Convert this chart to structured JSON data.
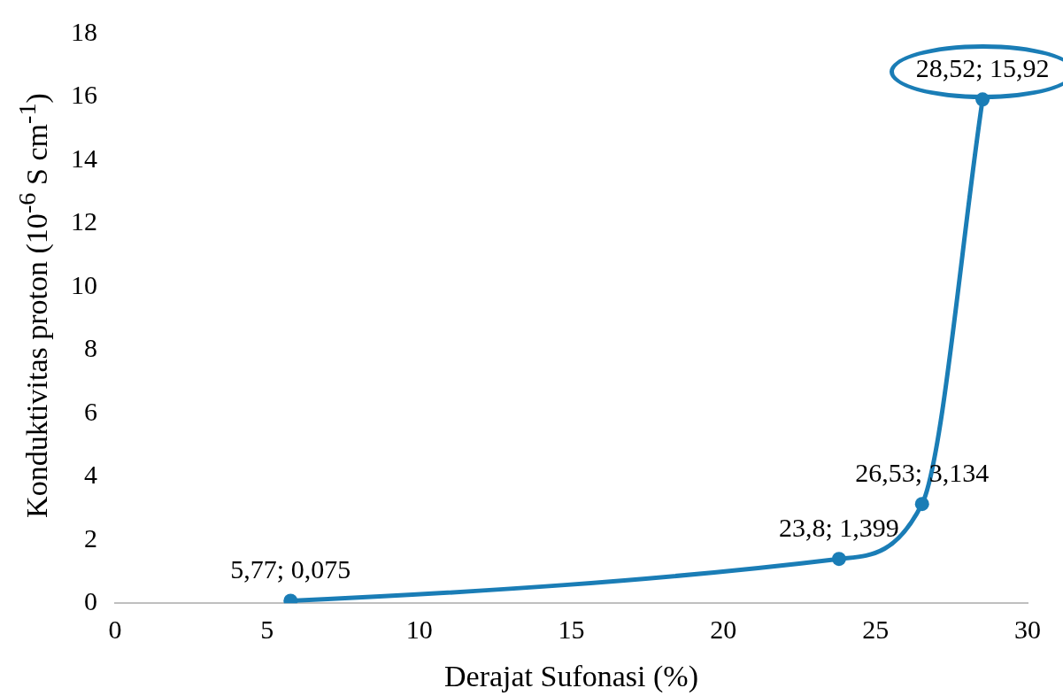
{
  "chart_data": {
    "type": "line",
    "xlabel": "Derajat Sufonasi (%)",
    "ylabel": "Konduktivitas proton (10$^{-6}$ S cm$^{-1}$)",
    "x": [
      5.77,
      23.8,
      26.53,
      28.52
    ],
    "series": [
      {
        "color": "#1a7db6",
        "values": [
          0.075,
          1.399,
          3.134,
          15.92
        ],
        "value_labels": [
          "5,77; 0,075",
          "23,8; 1,399",
          "26,53; 3,134",
          "28,52; 15,92"
        ]
      }
    ],
    "xlim": [
      0,
      30
    ],
    "xticks": [
      0,
      5,
      10,
      15,
      20,
      25,
      30
    ],
    "ylim": [
      0,
      18
    ],
    "yticks": [
      0,
      2,
      4,
      6,
      8,
      10,
      12,
      14,
      16,
      18
    ],
    "grid": false,
    "legend": false,
    "marker": "circle",
    "line_style": "solid"
  }
}
